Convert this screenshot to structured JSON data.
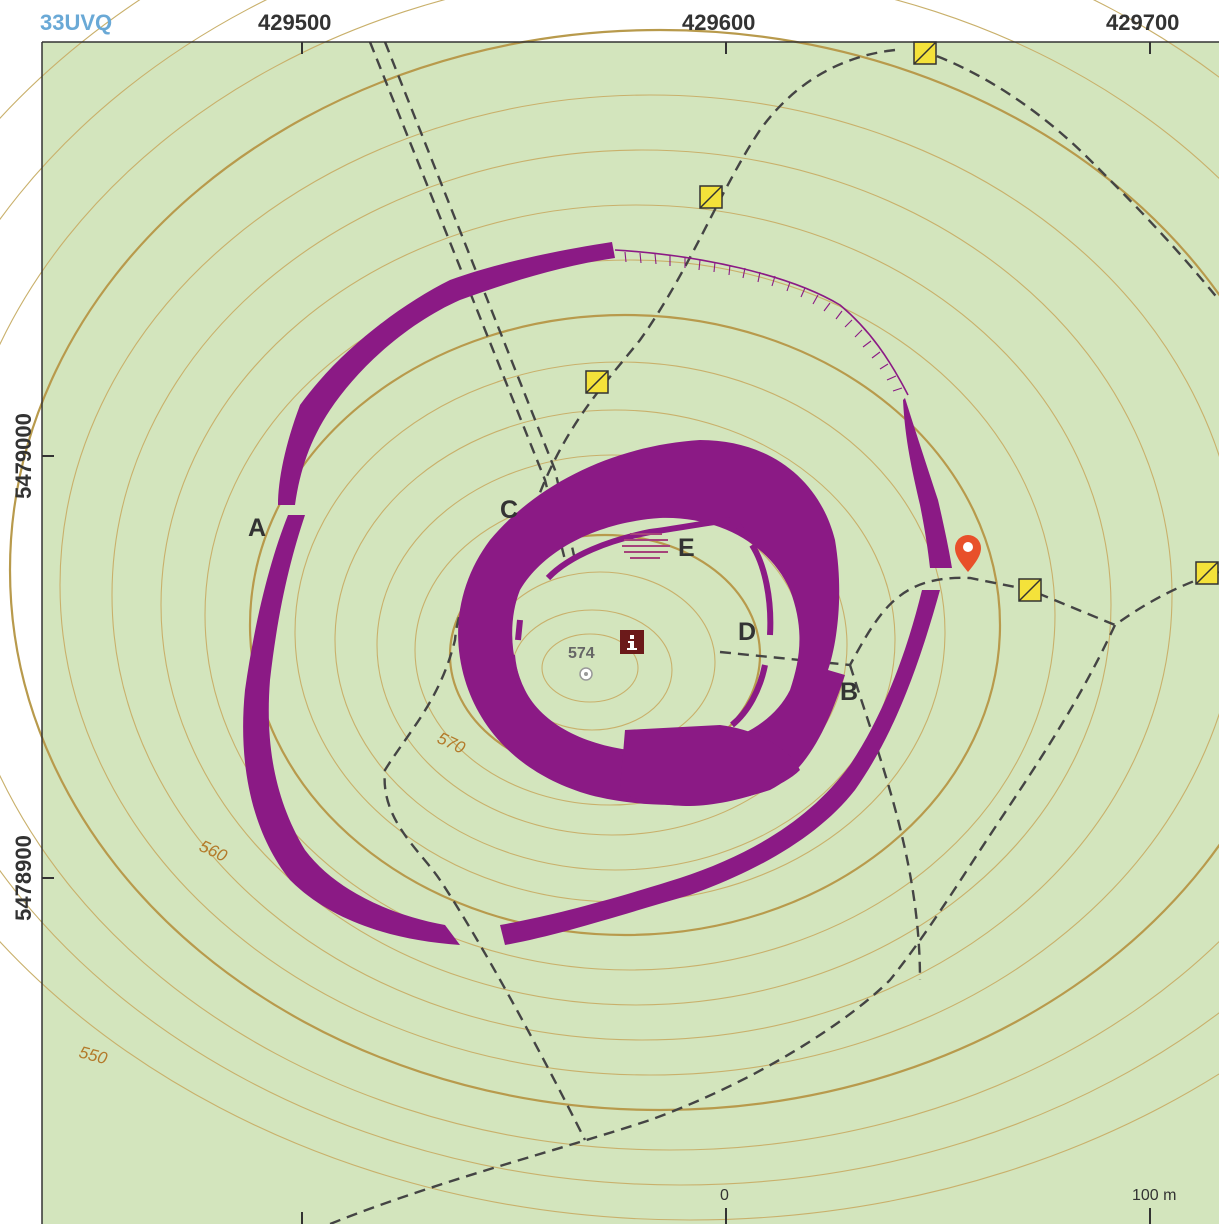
{
  "grid": {
    "zone": "33UVQ",
    "eastings": [
      "429500",
      "429600",
      "429700"
    ],
    "northings": [
      "5479000",
      "5478900"
    ]
  },
  "labels": {
    "a": "A",
    "b": "B",
    "c": "C",
    "d": "D",
    "e": "E"
  },
  "contours": {
    "c570": "570",
    "c560": "560",
    "c550": "550"
  },
  "summit": {
    "elevation": "574"
  },
  "scale": {
    "zero": "0",
    "end": "100 m"
  },
  "icons": {
    "info": "info-icon",
    "location": "location-pin-icon",
    "signpost": "trail-marker-icon"
  },
  "colors": {
    "background": "#d3e5bd",
    "rampart": "#8b1a85",
    "contour": "#c9b06b",
    "path": "#444444",
    "pin": "#e8502a",
    "marker": "#f4e23a"
  }
}
